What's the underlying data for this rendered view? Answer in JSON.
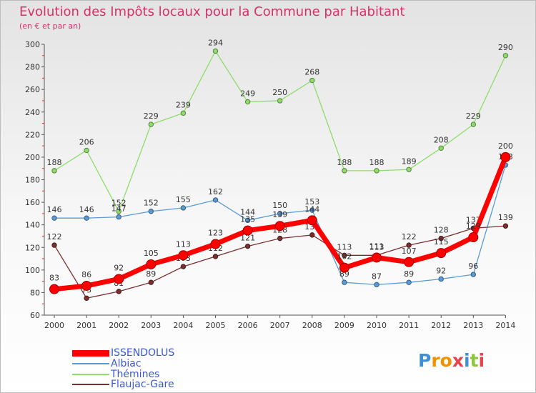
{
  "header": {
    "title": "Evolution des Impôts locaux pour la Commune par Habitant",
    "subtitle": "(en € et par an)"
  },
  "logo": {
    "letters": [
      "P",
      "r",
      "o",
      "x",
      "i",
      "t",
      "i"
    ],
    "colors": [
      "#3f8fd6",
      "#f39200",
      "#f39200",
      "#e8434a",
      "#3f8fd6",
      "#8cc63f",
      "#e8434a"
    ]
  },
  "chart_data": {
    "type": "line",
    "title": "Evolution des Impôts locaux pour la Commune par Habitant",
    "subtitle": "(en € et par an)",
    "x": [
      "2000",
      "2001",
      "2002",
      "2003",
      "2004",
      "2005",
      "2006",
      "2007",
      "2008",
      "2009",
      "2010",
      "2011",
      "2012",
      "2013",
      "2014"
    ],
    "ylim": [
      60,
      300
    ],
    "yticks": [
      60,
      80,
      100,
      120,
      140,
      160,
      180,
      200,
      220,
      240,
      260,
      280,
      300
    ],
    "grid": false,
    "legend_position": "bottom-left",
    "series": [
      {
        "name": "Thémines",
        "color": "#8fdc6b",
        "width": 1.3,
        "values": [
          188,
          206,
          152,
          229,
          239,
          294,
          249,
          250,
          268,
          188,
          188,
          189,
          208,
          229,
          290
        ],
        "labels": [
          "188",
          "206",
          "152",
          "229",
          "239",
          "294",
          "249",
          "250",
          "268",
          "188",
          "188",
          "189",
          "208",
          "229",
          "290"
        ]
      },
      {
        "name": "Albiac",
        "color": "#5b9bd5",
        "width": 1.3,
        "values": [
          146,
          146,
          147,
          152,
          155,
          162,
          144,
          150,
          153,
          89,
          87,
          89,
          92,
          96,
          193
        ],
        "labels": [
          "146",
          "146",
          "147",
          "152",
          "155",
          "162",
          "144",
          "150",
          "153",
          "89",
          "87",
          "89",
          "92",
          "96",
          "193"
        ]
      },
      {
        "name": "Flaujac-Gare",
        "color": "#7a2f2f",
        "width": 1.3,
        "values": [
          122,
          75,
          81,
          89,
          103,
          112,
          121,
          128,
          131,
          113,
          113,
          122,
          128,
          137,
          139
        ],
        "labels": [
          "122",
          "75",
          "81",
          "89",
          "103",
          "112",
          "121",
          "128",
          "131",
          "113",
          "113",
          "122",
          "128",
          "137",
          "139"
        ]
      },
      {
        "name": "ISSENDOLUS",
        "color": "#ff0000",
        "width": 7,
        "values": [
          83,
          86,
          92,
          105,
          113,
          123,
          135,
          139,
          144,
          102,
          111,
          107,
          115,
          129,
          200
        ],
        "labels": [
          "83",
          "86",
          "92",
          "105",
          "113",
          "123",
          "135",
          "139",
          "144",
          "102",
          "111",
          "107",
          "115",
          "129",
          "200"
        ]
      }
    ]
  },
  "legend": [
    {
      "name": "ISSENDOLUS",
      "color": "#ff0000"
    },
    {
      "name": "Albiac",
      "color": "#5b9bd5"
    },
    {
      "name": "Thémines",
      "color": "#8fdc6b"
    },
    {
      "name": "Flaujac-Gare",
      "color": "#7a2f2f"
    }
  ]
}
